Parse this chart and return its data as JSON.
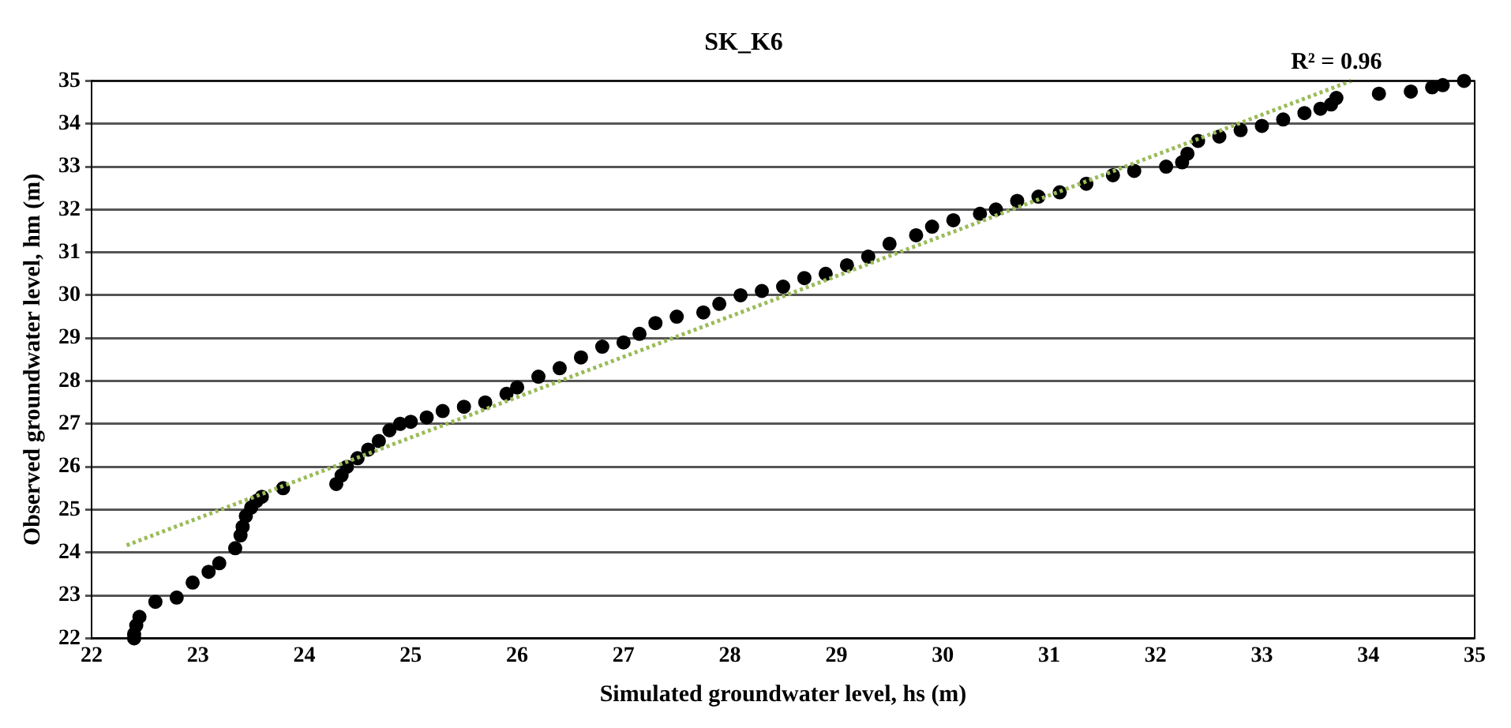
{
  "chart_data": {
    "type": "scatter",
    "title": "SK_K6",
    "xlabel": "Simulated groundwater level, hs (m)",
    "ylabel": "Observed groundwater level, hm (m)",
    "xlim": [
      22,
      35
    ],
    "xticks": [
      22,
      23,
      24,
      25,
      26,
      27,
      28,
      29,
      30,
      31,
      32,
      33,
      34,
      35
    ],
    "ylim": [
      22,
      35
    ],
    "yticks": [
      22,
      23,
      24,
      25,
      26,
      27,
      28,
      29,
      30,
      31,
      32,
      33,
      34,
      35
    ],
    "grid": "y",
    "legend": false,
    "marker": "circle",
    "annotations": [
      "R² = 0.96"
    ],
    "series": [
      {
        "color": "#000000",
        "x": [
          22.4,
          22.4,
          22.42,
          22.45,
          22.6,
          22.8,
          22.95,
          23.1,
          23.2,
          23.35,
          23.4,
          23.42,
          23.45,
          23.5,
          23.55,
          23.6,
          23.8,
          24.3,
          24.35,
          24.4,
          24.5,
          24.6,
          24.7,
          24.8,
          24.9,
          25.0,
          25.15,
          25.3,
          25.5,
          25.7,
          25.9,
          26.0,
          26.2,
          26.4,
          26.6,
          26.8,
          27.0,
          27.15,
          27.3,
          27.5,
          27.75,
          27.9,
          28.1,
          28.3,
          28.5,
          28.7,
          28.9,
          29.1,
          29.3,
          29.5,
          29.75,
          29.9,
          30.1,
          30.35,
          30.5,
          30.7,
          30.9,
          31.1,
          31.35,
          31.6,
          31.8,
          32.1,
          32.25,
          32.3,
          32.4,
          32.6,
          32.8,
          33.0,
          33.2,
          33.4,
          33.55,
          33.65,
          33.7,
          34.1,
          34.4,
          34.6,
          34.7,
          34.9
        ],
        "values": [
          22.0,
          22.1,
          22.3,
          22.5,
          22.85,
          22.95,
          23.3,
          23.55,
          23.75,
          24.1,
          24.4,
          24.6,
          24.85,
          25.05,
          25.2,
          25.3,
          25.5,
          25.6,
          25.8,
          26.0,
          26.2,
          26.4,
          26.6,
          26.85,
          27.0,
          27.05,
          27.15,
          27.3,
          27.4,
          27.5,
          27.7,
          27.85,
          28.1,
          28.3,
          28.55,
          28.8,
          28.9,
          29.1,
          29.35,
          29.5,
          29.6,
          29.8,
          30.0,
          30.1,
          30.2,
          30.4,
          30.5,
          30.7,
          30.9,
          31.2,
          31.4,
          31.6,
          31.75,
          31.9,
          32.0,
          32.2,
          32.3,
          32.4,
          32.6,
          32.8,
          32.9,
          33.0,
          33.1,
          33.3,
          33.6,
          33.7,
          33.85,
          33.95,
          34.1,
          34.25,
          34.35,
          34.45,
          34.6,
          34.7,
          34.75,
          34.85,
          34.9,
          35.0
        ]
      },
      {
        "type": "line",
        "color": "#9bbb59",
        "line_style": "dotted",
        "marker": "none",
        "x": [
          22.33,
          33.84
        ],
        "values": [
          24.17,
          35.0
        ]
      }
    ]
  }
}
